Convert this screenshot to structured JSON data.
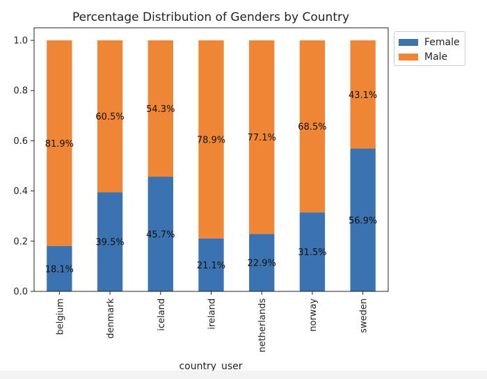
{
  "chart_data": {
    "type": "bar",
    "stacked": true,
    "title": "Percentage Distribution of Genders by Country",
    "xlabel": "country_user",
    "ylabel": "",
    "ylim": [
      0,
      1.05
    ],
    "yticks": [
      0.0,
      0.2,
      0.4,
      0.6,
      0.8,
      1.0
    ],
    "ytick_labels": [
      "0.0",
      "0.2",
      "0.4",
      "0.6",
      "0.8",
      "1.0"
    ],
    "categories": [
      "belgium",
      "denmark",
      "iceland",
      "ireland",
      "netherlands",
      "norway",
      "sweden"
    ],
    "series": [
      {
        "name": "Female",
        "color": "#3a73b0",
        "values": [
          0.181,
          0.395,
          0.457,
          0.211,
          0.229,
          0.315,
          0.569
        ],
        "labels": [
          "18.1%",
          "39.5%",
          "45.7%",
          "21.1%",
          "22.9%",
          "31.5%",
          "56.9%"
        ]
      },
      {
        "name": "Male",
        "color": "#ee8636",
        "values": [
          0.819,
          0.605,
          0.543,
          0.789,
          0.771,
          0.685,
          0.431
        ],
        "labels": [
          "81.9%",
          "60.5%",
          "54.3%",
          "78.9%",
          "77.1%",
          "68.5%",
          "43.1%"
        ]
      }
    ],
    "grid": false,
    "legend_position": "upper right, outside plot"
  }
}
